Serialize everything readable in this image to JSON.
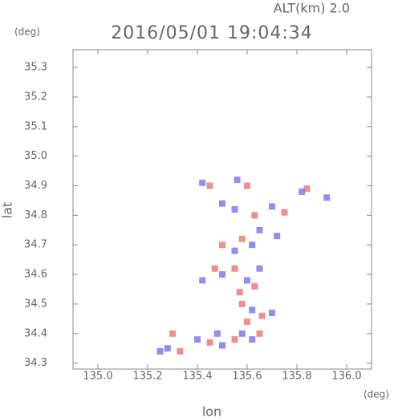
{
  "chart_data": {
    "type": "scatter",
    "title": "2016/05/01 19:04:34",
    "subtitle": "ALT(km) 2.0",
    "y_unit": "(deg)",
    "x_unit": "(deg)",
    "x_label": "lon",
    "y_label": "lat",
    "xlim": [
      134.9,
      136.1
    ],
    "ylim": [
      34.28,
      35.36
    ],
    "xticks": [
      {
        "value": 135,
        "label": "135.0"
      },
      135.2,
      135.4,
      135.6,
      135.8,
      {
        "value": 136,
        "label": "136.0"
      }
    ],
    "yticks": [
      34.3,
      34.4,
      34.5,
      34.6,
      34.7,
      34.8,
      34.9,
      {
        "value": 35,
        "label": "35.0"
      },
      35.1,
      35.2,
      35.3
    ],
    "x": [
      135.42,
      135.45,
      135.56,
      135.6,
      135.84,
      135.82,
      135.92,
      135.5,
      135.55,
      135.63,
      135.7,
      135.75,
      135.65,
      135.5,
      135.55,
      135.58,
      135.62,
      135.72,
      135.47,
      135.5,
      135.55,
      135.6,
      135.57,
      135.63,
      135.65,
      135.42,
      135.58,
      135.62,
      135.66,
      135.6,
      135.7,
      135.58,
      135.62,
      135.55,
      135.65,
      135.48,
      135.45,
      135.4,
      135.3,
      135.28,
      135.33,
      135.25,
      135.5
    ],
    "values": [
      34.91,
      34.9,
      34.92,
      34.9,
      34.89,
      34.88,
      34.86,
      34.84,
      34.82,
      34.8,
      34.83,
      34.81,
      34.75,
      34.7,
      34.68,
      34.72,
      34.7,
      34.73,
      34.62,
      34.6,
      34.62,
      34.58,
      34.54,
      34.56,
      34.62,
      34.58,
      34.5,
      34.48,
      34.46,
      34.44,
      34.47,
      34.4,
      34.38,
      34.38,
      34.4,
      34.4,
      34.37,
      34.38,
      34.4,
      34.35,
      34.34,
      34.34,
      34.36
    ],
    "colors": [
      "#7b7bea",
      "#ea7b7b",
      "#7b7bea",
      "#ea7b7b",
      "#ea7b7b",
      "#7b7bea",
      "#7b7bea",
      "#7b7bea",
      "#7b7bea",
      "#ea7b7b",
      "#7b7bea",
      "#ea7b7b",
      "#7b7bea",
      "#ea7b7b",
      "#7b7bea",
      "#ea7b7b",
      "#7b7bea",
      "#7b7bea",
      "#ea7b7b",
      "#7b7bea",
      "#ea7b7b",
      "#7b7bea",
      "#ea7b7b",
      "#ea7b7b",
      "#7b7bea",
      "#7b7bea",
      "#ea7b7b",
      "#7b7bea",
      "#ea7b7b",
      "#ea7b7b",
      "#7b7bea",
      "#7b7bea",
      "#7b7bea",
      "#ea7b7b",
      "#ea7b7b",
      "#7b7bea",
      "#ea7b7b",
      "#7b7bea",
      "#ea7b7b",
      "#7b7bea",
      "#ea7b7b",
      "#7b7bea",
      "#7b7bea"
    ]
  }
}
